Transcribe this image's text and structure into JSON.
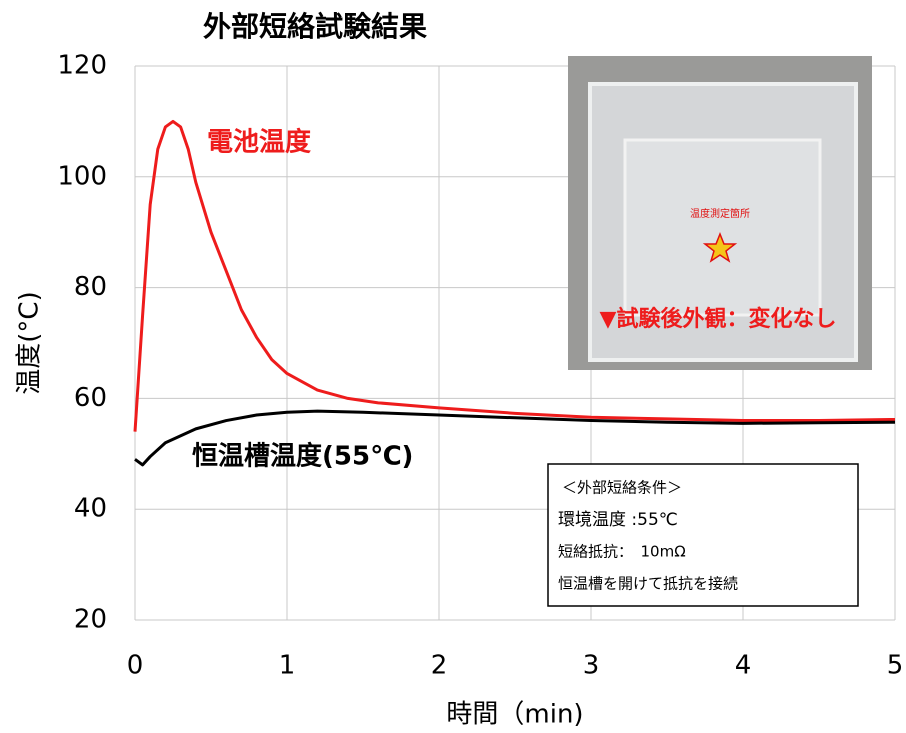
{
  "chart_data": {
    "type": "line",
    "title": "外部短絡試験結果",
    "x_label": "時間（min)",
    "y_label": "温度(°C)",
    "xlim": [
      0,
      5
    ],
    "ylim": [
      20,
      120
    ],
    "xticks": [
      0,
      1,
      2,
      3,
      4,
      5
    ],
    "yticks": [
      20,
      40,
      60,
      80,
      100,
      120
    ],
    "grid": true,
    "series": [
      {
        "name": "電池温度",
        "color": "#ee1c1c",
        "x": [
          0,
          0.05,
          0.1,
          0.15,
          0.2,
          0.25,
          0.3,
          0.35,
          0.4,
          0.5,
          0.6,
          0.7,
          0.8,
          0.9,
          1.0,
          1.2,
          1.4,
          1.6,
          2,
          2.5,
          3,
          3.5,
          4,
          4.5,
          5
        ],
        "values": [
          54,
          75,
          95,
          105,
          109,
          110,
          109,
          105,
          99,
          90,
          83,
          76,
          71,
          67,
          64.5,
          61.5,
          60,
          59.2,
          58.3,
          57.3,
          56.6,
          56.3,
          56,
          56,
          56.2
        ]
      },
      {
        "name": "恒温槽温度(55℃)",
        "color": "#000000",
        "x": [
          0,
          0.05,
          0.1,
          0.2,
          0.4,
          0.6,
          0.8,
          1.0,
          1.2,
          1.5,
          2,
          2.5,
          3,
          3.5,
          4,
          4.5,
          5
        ],
        "values": [
          49,
          48,
          49.5,
          52,
          54.5,
          56,
          57,
          57.5,
          57.7,
          57.5,
          57,
          56.5,
          56,
          55.7,
          55.5,
          55.6,
          55.7
        ]
      }
    ],
    "photo": {
      "spot_label": "温度測定箇所",
      "caption": "▼試験後外観：変化なし"
    },
    "conditions": [
      "＜外部短絡条件＞",
      "環境温度 :55℃",
      "短絡抵抗：　10mΩ",
      "恒温槽を開けて抵抗を接続"
    ]
  }
}
